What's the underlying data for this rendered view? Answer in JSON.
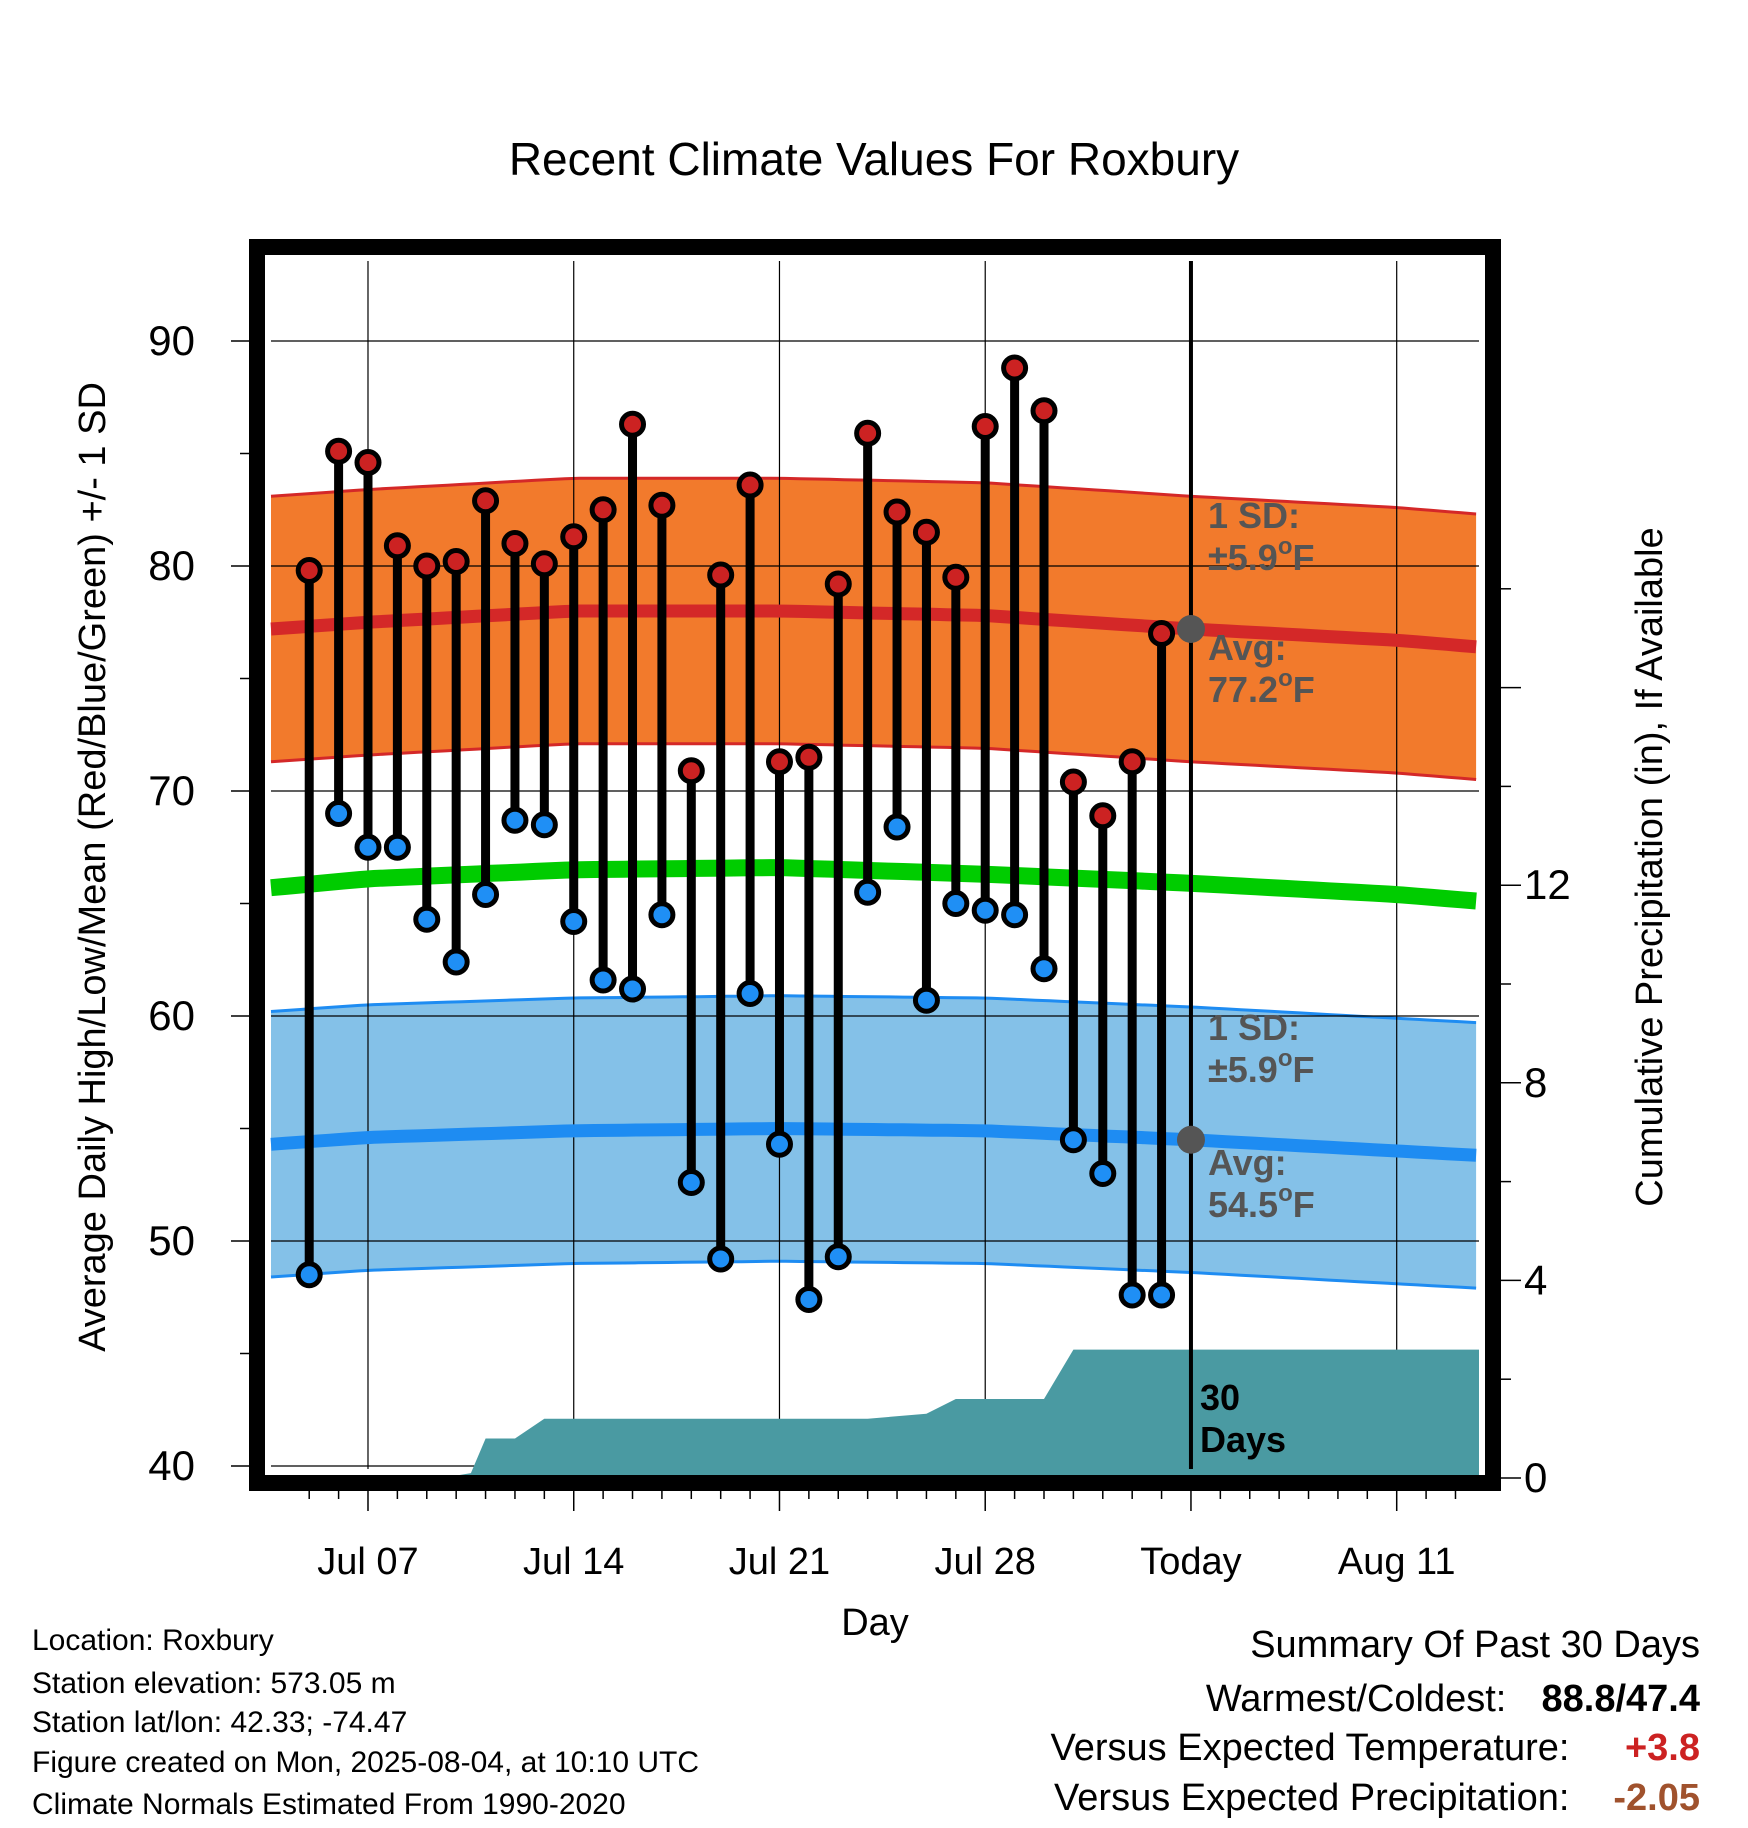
{
  "chart_data": {
    "type": "line",
    "title": "Recent Climate Values For Roxbury",
    "xlabel": "Day",
    "ylabel": "Average Daily High/Low/Mean (Red/Blue/Green) +/- 1 SD",
    "y2label": "Cumulative Precipitation (in), If Available",
    "ylim": [
      40,
      94
    ],
    "y2lim": [
      0,
      20
    ],
    "yticks": [
      "90",
      "80",
      "70",
      "60",
      "50",
      "40"
    ],
    "y2ticks": [
      "12",
      "8",
      "4",
      "0"
    ],
    "x_ticks": [
      {
        "day": 7,
        "label": "Jul 07"
      },
      {
        "day": 14,
        "label": "Jul 14"
      },
      {
        "day": 21,
        "label": "Jul 21"
      },
      {
        "day": 28,
        "label": "Jul 28"
      },
      {
        "day": 35,
        "label": "Today"
      },
      {
        "day": 42,
        "label": "Aug 11"
      }
    ],
    "xlim": [
      3.7,
      44.8
    ],
    "today_day": 35,
    "grid": true,
    "observed": {
      "days": [
        5,
        6,
        7,
        8,
        9,
        10,
        11,
        12,
        13,
        14,
        15,
        16,
        17,
        18,
        19,
        20,
        21,
        22,
        23,
        24,
        25,
        26,
        27,
        28,
        29,
        30,
        31,
        32,
        33,
        34
      ],
      "high": [
        79.8,
        85.1,
        84.6,
        80.9,
        80.0,
        80.2,
        82.9,
        81.0,
        80.1,
        81.3,
        82.5,
        86.3,
        82.7,
        70.9,
        79.6,
        83.6,
        71.3,
        71.5,
        79.2,
        85.9,
        82.4,
        81.5,
        79.5,
        86.2,
        88.8,
        86.9,
        70.4,
        68.9,
        71.3,
        77.0
      ],
      "low": [
        48.5,
        69.0,
        67.5,
        67.5,
        64.3,
        62.4,
        65.4,
        68.7,
        68.5,
        64.2,
        61.6,
        61.2,
        64.5,
        52.6,
        49.2,
        61.0,
        54.3,
        47.4,
        49.3,
        65.5,
        68.4,
        60.7,
        65.0,
        64.7,
        64.5,
        62.1,
        54.5,
        53.0,
        47.6,
        47.6
      ]
    },
    "normals": {
      "days": [
        3.7,
        7,
        14,
        21,
        28,
        35,
        42,
        44.8
      ],
      "mean_high": [
        77.2,
        77.5,
        78.0,
        78.0,
        77.8,
        77.2,
        76.7,
        76.4
      ],
      "mean_low": [
        54.3,
        54.6,
        54.9,
        55.0,
        54.9,
        54.5,
        54.0,
        53.8
      ],
      "daily_mean": [
        65.7,
        66.1,
        66.5,
        66.6,
        66.3,
        65.9,
        65.4,
        65.1
      ],
      "sd_f": 5.9
    },
    "precipitation": {
      "days": [
        3.7,
        9.5,
        10.5,
        11,
        12,
        13,
        14,
        20,
        24,
        26,
        27,
        30,
        31,
        44.8
      ],
      "cumulative_in": [
        0.0,
        0.0,
        0.1,
        0.8,
        0.8,
        1.2,
        1.2,
        1.2,
        1.2,
        1.3,
        1.6,
        1.6,
        2.6,
        2.6
      ]
    },
    "annotations": {
      "high_sd_line1": "1 SD:",
      "high_sd_pm": "±5.9",
      "high_avg_line1": "Avg:",
      "high_avg_value": "77.2",
      "low_sd_line1": "1 SD:",
      "low_sd_pm": "±5.9",
      "low_avg_line1": "Avg:",
      "low_avg_value": "54.5",
      "deg_sup": "o",
      "unit_f": "F",
      "window_line1": "30",
      "window_line2": "Days"
    },
    "colors": {
      "high_band": "#f27a2c",
      "high_line": "#d42828",
      "low_band": "#84c1e8",
      "low_line": "#1e8cf2",
      "mean_line": "#00cc00",
      "precip": "#4a9aa2",
      "high_dot": "#cc2222",
      "low_dot": "#1f8ff5",
      "annotation": "#555555"
    }
  },
  "info": {
    "location": "Location: Roxbury",
    "elevation": "Station elevation: 573.05 m",
    "latlon": "Station lat/lon: 42.33; -74.47",
    "created": "Figure created on Mon, 2025-08-04, at 10:10 UTC",
    "normals": "Climate Normals Estimated From 1990-2020"
  },
  "summary": {
    "heading": "Summary Of Past 30 Days",
    "warm_cold_label": "Warmest/Coldest:",
    "warmest": "88.8",
    "slash": "/",
    "coldest": "47.4",
    "temp_label": "Versus Expected Temperature:",
    "temp_value": "+3.8",
    "temp_color": "#cc2222",
    "precip_label": "Versus Expected Precipitation:",
    "precip_value": "-2.05",
    "precip_color": "#a0522d"
  }
}
